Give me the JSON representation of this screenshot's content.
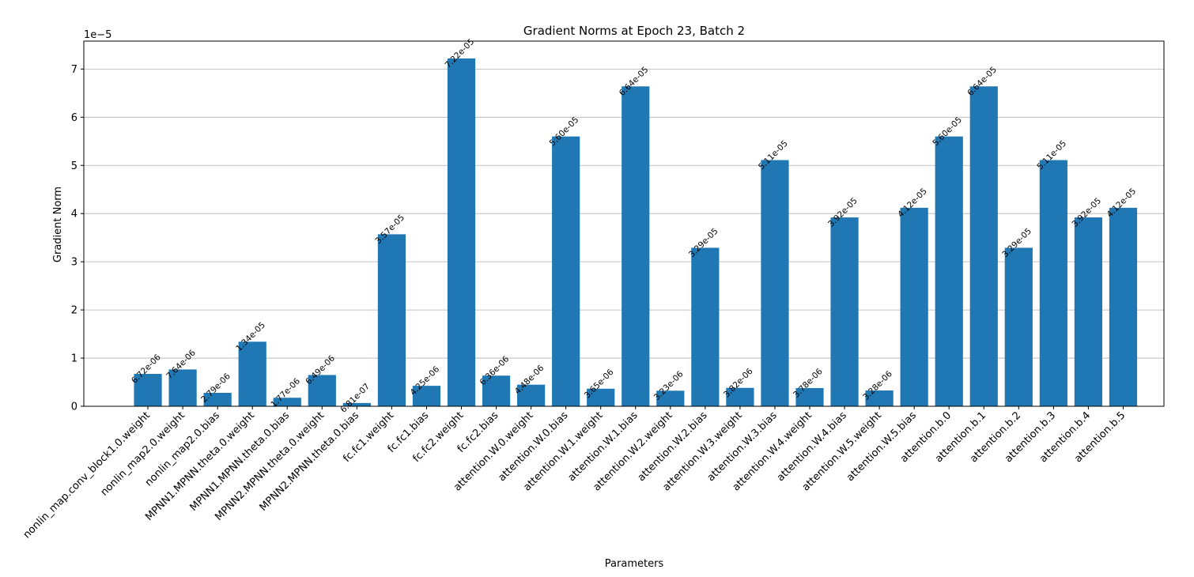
{
  "chart_data": {
    "type": "bar",
    "title": "Gradient Norms at Epoch 23, Batch 2",
    "xlabel": "Parameters",
    "ylabel": "Gradient Norm",
    "y_exponent_label": "1e−5",
    "y_scale_factor": 1e-05,
    "ylim": [
      0,
      7.58e-05
    ],
    "yticks": [
      0,
      1,
      2,
      3,
      4,
      5,
      6,
      7
    ],
    "grid": "y",
    "bar_color": "#1f77b4",
    "categories": [
      "nonlin_map.conv_block1.0.weight",
      "nonlin_map2.0.weight",
      "nonlin_map2.0.bias",
      "MPNN1.MPNN.theta.0.weight",
      "MPNN1.MPNN.theta.0.bias",
      "MPNN2.MPNN.theta.0.weight",
      "MPNN2.MPNN.theta.0.bias",
      "fc.fc1.weight",
      "fc.fc1.bias",
      "fc.fc2.weight",
      "fc.fc2.bias",
      "attention.W.0.weight",
      "attention.W.0.bias",
      "attention.W.1.weight",
      "attention.W.1.bias",
      "attention.W.2.weight",
      "attention.W.2.bias",
      "attention.W.3.weight",
      "attention.W.3.bias",
      "attention.W.4.weight",
      "attention.W.4.bias",
      "attention.W.5.weight",
      "attention.W.5.bias",
      "attention.b.0",
      "attention.b.1",
      "attention.b.2",
      "attention.b.3",
      "attention.b.4",
      "attention.b.5"
    ],
    "values": [
      6.72e-06,
      7.64e-06,
      2.79e-06,
      1.34e-05,
      1.77e-06,
      6.49e-06,
      6.81e-07,
      3.57e-05,
      4.25e-06,
      7.22e-05,
      6.36e-06,
      4.48e-06,
      5.6e-05,
      3.65e-06,
      6.64e-05,
      3.23e-06,
      3.29e-05,
      3.82e-06,
      5.11e-05,
      3.78e-06,
      3.92e-05,
      3.28e-06,
      4.12e-05,
      5.6e-05,
      6.64e-05,
      3.29e-05,
      5.11e-05,
      3.92e-05,
      4.12e-05
    ],
    "data_labels": [
      "6.72e-06",
      "7.64e-06",
      "2.79e-06",
      "1.34e-05",
      "1.77e-06",
      "6.49e-06",
      "6.81e-07",
      "3.57e-05",
      "4.25e-06",
      "7.22e-05",
      "6.36e-06",
      "4.48e-06",
      "5.60e-05",
      "3.65e-06",
      "6.64e-05",
      "3.23e-06",
      "3.29e-05",
      "3.82e-06",
      "5.11e-05",
      "3.78e-06",
      "3.92e-05",
      "3.28e-06",
      "4.12e-05",
      "5.60e-05",
      "6.64e-05",
      "3.29e-05",
      "5.11e-05",
      "3.92e-05",
      "4.12e-05"
    ]
  }
}
